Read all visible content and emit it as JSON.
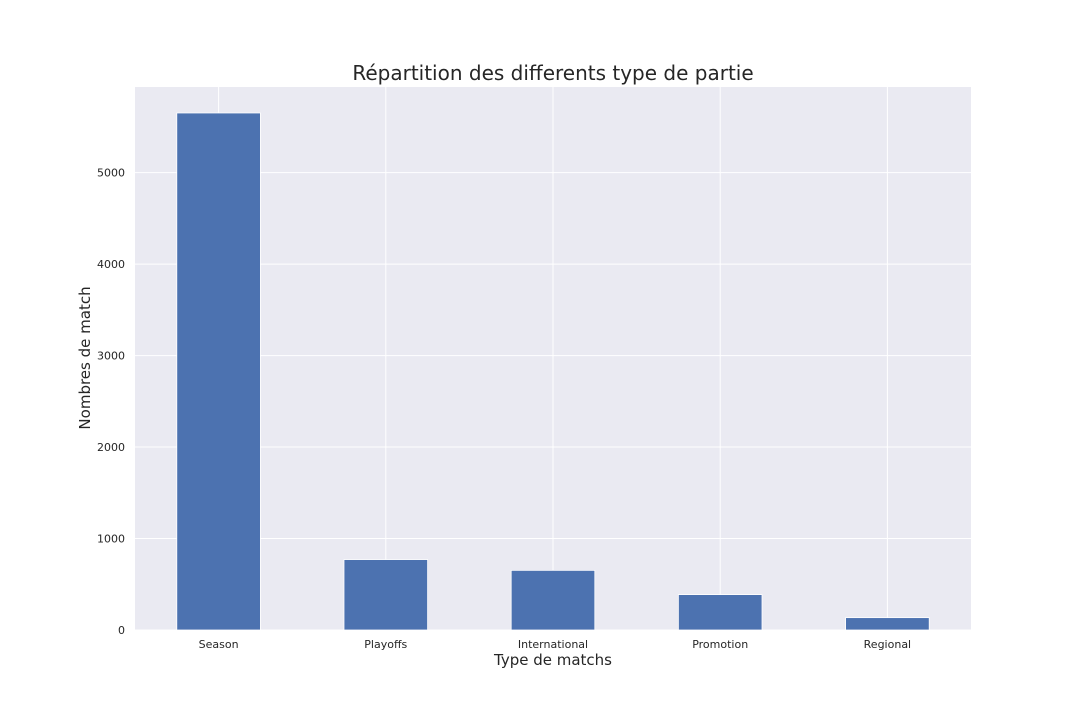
{
  "chart_data": {
    "type": "bar",
    "title": "Répartition des differents type de partie",
    "xlabel": "Type de matchs",
    "ylabel": "Nombres de match",
    "categories": [
      "Season",
      "Playoffs",
      "International",
      "Promotion",
      "Regional"
    ],
    "values": [
      5652,
      770,
      652,
      387,
      135
    ],
    "ylim": [
      0,
      5936
    ],
    "yticks": [
      0,
      1000,
      2000,
      3000,
      4000,
      5000
    ],
    "grid": true,
    "legend": "none",
    "colors": {
      "bar": "#4c72b0",
      "plot_background": "#eaeaf2",
      "grid": "#ffffff",
      "text": "#262626"
    }
  }
}
